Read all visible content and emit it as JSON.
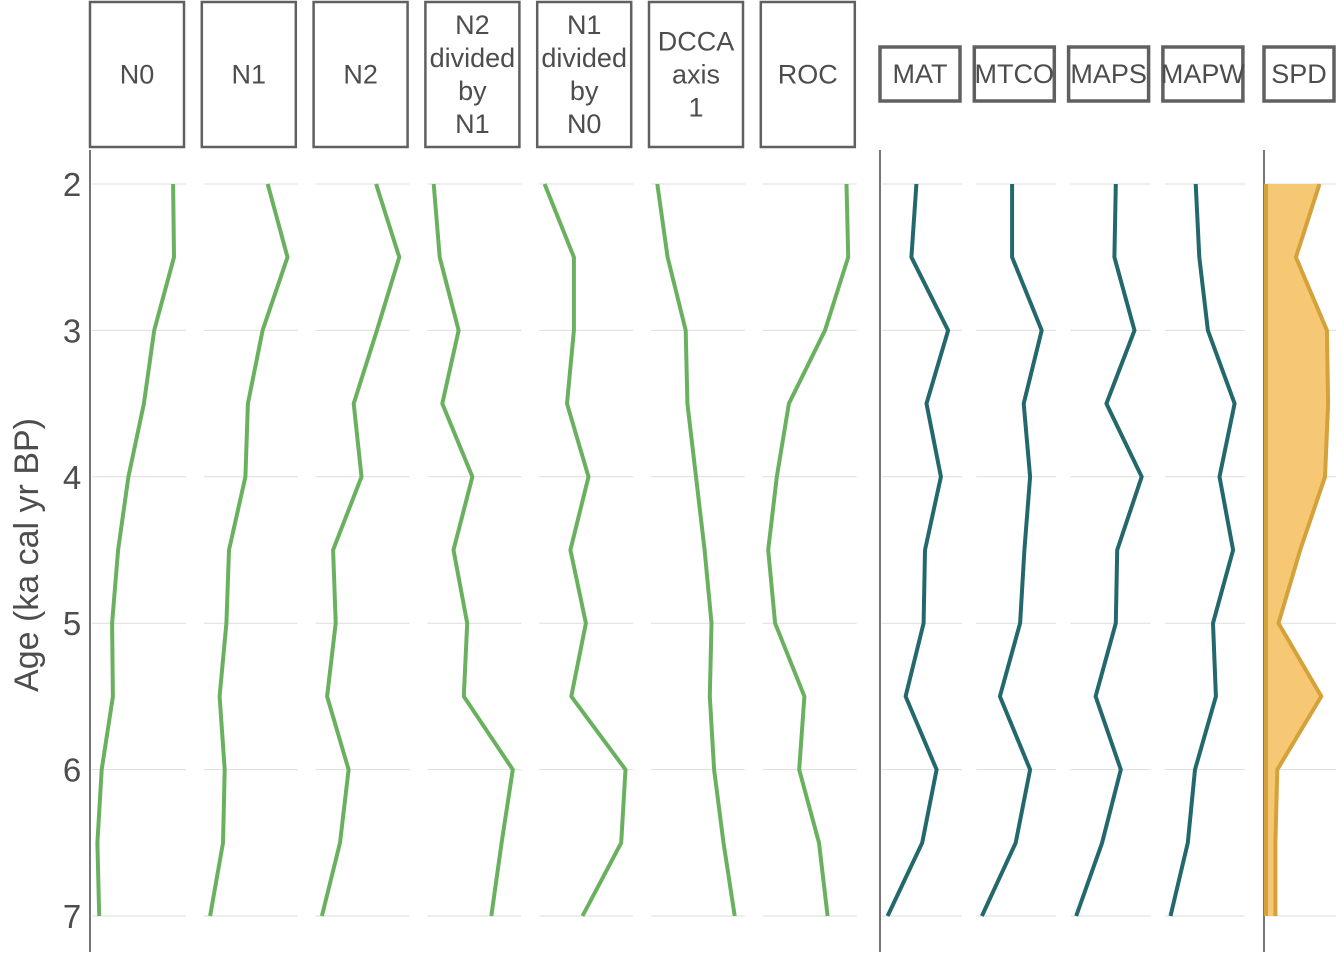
{
  "chart_data": {
    "type": "line",
    "ylabel": "Age (ka cal yr BP)",
    "ylim": [
      2,
      7
    ],
    "y_ticks": [
      2,
      3,
      4,
      5,
      6,
      7
    ],
    "y_tick_labels": [
      "2",
      "3",
      "4",
      "5",
      "6",
      "7"
    ],
    "y_reversed": true,
    "grid": "horizontal",
    "ages": [
      2,
      2.5,
      3,
      3.5,
      4,
      4.5,
      5,
      5.5,
      6,
      6.5,
      7
    ],
    "colors": {
      "diversity": "#6ab15f",
      "climate": "#23686d",
      "spd_fill": "#f7c873",
      "spd_line": "#d4a13a"
    },
    "groups": [
      {
        "panels": [
          {
            "label": "N0",
            "label_lines": [
              "N0"
            ],
            "values": [
              0.92,
              0.93,
              0.7,
              0.58,
              0.4,
              0.28,
              0.21,
              0.22,
              0.09,
              0.04,
              0.06
            ]
          },
          {
            "label": "N1",
            "label_lines": [
              "N1"
            ],
            "values": [
              0.72,
              0.95,
              0.66,
              0.49,
              0.46,
              0.27,
              0.24,
              0.16,
              0.22,
              0.2,
              0.05
            ]
          },
          {
            "label": "N2",
            "label_lines": [
              "N2"
            ],
            "values": [
              0.68,
              0.95,
              0.69,
              0.42,
              0.51,
              0.18,
              0.21,
              0.11,
              0.36,
              0.26,
              0.05
            ]
          },
          {
            "label": "N2 divided by N1",
            "label_lines": [
              "N2",
              "divided",
              "by",
              "N1"
            ],
            "values": [
              0.05,
              0.12,
              0.34,
              0.15,
              0.5,
              0.28,
              0.44,
              0.4,
              0.97,
              0.84,
              0.72
            ]
          },
          {
            "label": "N1 divided by N0",
            "label_lines": [
              "N1",
              "divided",
              "by",
              "N0"
            ],
            "values": [
              0.04,
              0.38,
              0.38,
              0.3,
              0.55,
              0.34,
              0.52,
              0.35,
              0.98,
              0.93,
              0.48
            ]
          },
          {
            "label": "DCCA axis 1",
            "label_lines": [
              "DCCA",
              "axis",
              "1"
            ],
            "values": [
              0.05,
              0.17,
              0.38,
              0.4,
              0.5,
              0.6,
              0.68,
              0.66,
              0.71,
              0.82,
              0.95
            ]
          },
          {
            "label": "ROC",
            "label_lines": [
              "ROC"
            ],
            "values": [
              0.95,
              0.97,
              0.7,
              0.28,
              0.14,
              0.04,
              0.12,
              0.46,
              0.4,
              0.63,
              0.73
            ]
          }
        ]
      },
      {
        "panels": [
          {
            "label": "MAT",
            "label_lines": [
              "MAT"
            ],
            "values": [
              0.45,
              0.38,
              0.89,
              0.59,
              0.79,
              0.57,
              0.55,
              0.3,
              0.73,
              0.53,
              0.05
            ]
          },
          {
            "label": "MTCO",
            "label_lines": [
              "MTCO"
            ],
            "values": [
              0.47,
              0.47,
              0.88,
              0.63,
              0.72,
              0.64,
              0.58,
              0.3,
              0.72,
              0.52,
              0.05
            ]
          },
          {
            "label": "MAPS",
            "label_lines": [
              "MAPS"
            ],
            "values": [
              0.6,
              0.58,
              0.86,
              0.47,
              0.96,
              0.62,
              0.6,
              0.32,
              0.67,
              0.41,
              0.05
            ]
          },
          {
            "label": "MAPW",
            "label_lines": [
              "MAPW"
            ],
            "values": [
              0.4,
              0.45,
              0.57,
              0.94,
              0.73,
              0.92,
              0.64,
              0.68,
              0.39,
              0.29,
              0.05
            ]
          }
        ]
      },
      {
        "panels": [
          {
            "label": "SPD",
            "label_lines": [
              "SPD"
            ],
            "type": "area",
            "values": [
              0.83,
              0.45,
              0.95,
              0.97,
              0.92,
              0.52,
              0.17,
              0.86,
              0.15,
              0.12,
              0.12
            ]
          }
        ]
      }
    ]
  }
}
